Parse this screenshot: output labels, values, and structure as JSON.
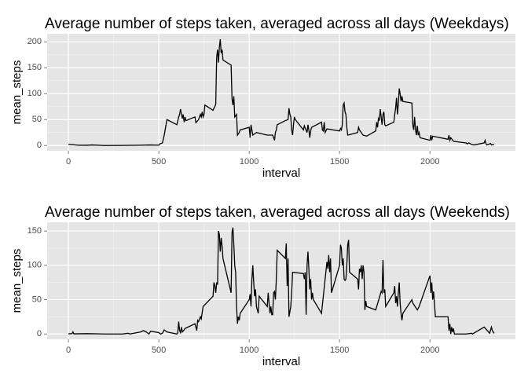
{
  "chart_data": [
    {
      "type": "line",
      "title": "Average number of steps taken, averaged across all days (Weekdays)",
      "x_label": "interval",
      "y_label": "mean_steps",
      "color": "#000000",
      "xlim": [
        -117.75,
        2472.75
      ],
      "ylim": [
        -10.27,
        215.6
      ],
      "xticks": [
        0,
        500,
        1000,
        1500,
        2000
      ],
      "yticks": [
        0,
        50,
        100,
        150,
        200
      ],
      "grid": true,
      "x": [
        0,
        55,
        100,
        130,
        200,
        300,
        400,
        450,
        500,
        505,
        520,
        530,
        545,
        600,
        610,
        615,
        620,
        630,
        635,
        640,
        645,
        650,
        700,
        705,
        720,
        730,
        735,
        740,
        745,
        750,
        755,
        800,
        805,
        810,
        815,
        820,
        825,
        830,
        835,
        840,
        845,
        850,
        855,
        900,
        905,
        910,
        915,
        920,
        930,
        935,
        945,
        950,
        1000,
        1005,
        1010,
        1015,
        1020,
        1040,
        1100,
        1130,
        1140,
        1145,
        1150,
        1155,
        1200,
        1215,
        1220,
        1225,
        1230,
        1235,
        1240,
        1245,
        1250,
        1255,
        1300,
        1305,
        1320,
        1325,
        1330,
        1335,
        1340,
        1345,
        1400,
        1405,
        1410,
        1415,
        1420,
        1430,
        1500,
        1505,
        1510,
        1515,
        1520,
        1525,
        1530,
        1535,
        1540,
        1545,
        1600,
        1605,
        1610,
        1630,
        1650,
        1700,
        1705,
        1710,
        1715,
        1720,
        1725,
        1730,
        1735,
        1740,
        1745,
        1750,
        1755,
        1800,
        1805,
        1810,
        1815,
        1820,
        1825,
        1830,
        1835,
        1840,
        1845,
        1850,
        1900,
        1905,
        1910,
        1915,
        1920,
        1925,
        1930,
        1935,
        1940,
        1945,
        2000,
        2005,
        2010,
        2015,
        2100,
        2105,
        2110,
        2115,
        2130,
        2200,
        2205,
        2215,
        2230,
        2245,
        2300,
        2305,
        2310,
        2315,
        2330,
        2335,
        2340,
        2355
      ],
      "values": [
        2.3,
        0.5,
        0.4,
        1,
        0,
        0.2,
        0.5,
        1,
        0.5,
        3,
        5,
        20,
        50,
        40,
        55,
        60,
        70,
        52,
        60,
        45,
        55,
        48,
        55,
        44,
        50,
        60,
        55,
        65,
        55,
        60,
        78,
        68,
        72,
        75,
        80,
        170,
        185,
        160,
        190,
        205,
        178,
        185,
        165,
        155,
        90,
        78,
        95,
        55,
        60,
        20,
        25,
        30,
        35,
        15,
        40,
        30,
        20,
        25,
        20,
        20,
        10,
        25,
        30,
        40,
        48,
        50,
        72,
        60,
        55,
        30,
        20,
        40,
        55,
        50,
        30,
        38,
        25,
        40,
        30,
        15,
        28,
        35,
        45,
        30,
        28,
        45,
        25,
        32,
        28,
        33,
        30,
        40,
        78,
        82,
        65,
        60,
        35,
        20,
        25,
        35,
        30,
        20,
        18,
        28,
        45,
        35,
        52,
        48,
        70,
        55,
        40,
        60,
        65,
        40,
        38,
        45,
        60,
        72,
        92,
        60,
        80,
        110,
        100,
        85,
        95,
        85,
        82,
        40,
        30,
        55,
        30,
        20,
        38,
        20,
        25,
        15,
        10,
        20,
        10,
        18,
        12,
        20,
        10,
        15,
        8,
        5,
        3,
        5,
        2,
        1,
        5,
        10,
        3,
        1,
        3,
        4,
        1,
        2
      ]
    },
    {
      "type": "line",
      "title": "Average number of steps taken, averaged across all days (Weekends)",
      "x_label": "interval",
      "y_label": "mean_steps",
      "color": "#000000",
      "xlim": [
        -117.75,
        2472.75
      ],
      "ylim": [
        -7.75,
        162.75
      ],
      "xticks": [
        0,
        500,
        1000,
        1500,
        2000
      ],
      "yticks": [
        0,
        50,
        100,
        150
      ],
      "grid": true,
      "x": [
        0,
        20,
        25,
        30,
        100,
        200,
        300,
        330,
        340,
        400,
        415,
        430,
        445,
        455,
        500,
        510,
        520,
        530,
        545,
        600,
        605,
        610,
        615,
        620,
        625,
        630,
        640,
        645,
        700,
        705,
        710,
        715,
        720,
        730,
        735,
        745,
        800,
        805,
        810,
        815,
        820,
        825,
        830,
        835,
        840,
        845,
        850,
        855,
        900,
        905,
        910,
        915,
        920,
        925,
        930,
        935,
        940,
        945,
        950,
        1000,
        1005,
        1010,
        1015,
        1020,
        1025,
        1030,
        1035,
        1040,
        1045,
        1050,
        1055,
        1100,
        1105,
        1110,
        1115,
        1120,
        1125,
        1130,
        1135,
        1140,
        1145,
        1150,
        1155,
        1200,
        1205,
        1210,
        1215,
        1220,
        1230,
        1235,
        1240,
        1300,
        1305,
        1310,
        1315,
        1320,
        1325,
        1330,
        1335,
        1340,
        1345,
        1350,
        1355,
        1400,
        1430,
        1435,
        1440,
        1445,
        1450,
        1455,
        1500,
        1505,
        1510,
        1515,
        1520,
        1525,
        1530,
        1535,
        1540,
        1545,
        1550,
        1555,
        1600,
        1605,
        1610,
        1615,
        1620,
        1625,
        1630,
        1635,
        1640,
        1645,
        1650,
        1700,
        1730,
        1735,
        1740,
        1745,
        1750,
        1755,
        1800,
        1805,
        1810,
        1815,
        1820,
        1825,
        1830,
        1835,
        1840,
        1845,
        1850,
        1900,
        1905,
        1930,
        1940,
        2000,
        2005,
        2010,
        2015,
        2020,
        2030,
        2100,
        2105,
        2110,
        2115,
        2120,
        2125,
        2130,
        2135,
        2200,
        2230,
        2235,
        2300,
        2330,
        2340,
        2345,
        2355
      ],
      "values": [
        0.2,
        0.5,
        3,
        0.2,
        0.5,
        0,
        0,
        1,
        0,
        3,
        5,
        3,
        0,
        4,
        2,
        0,
        1,
        6,
        3,
        0,
        2,
        18,
        5,
        2,
        10,
        3,
        6,
        8,
        15,
        10,
        5,
        20,
        18,
        25,
        22,
        40,
        55,
        75,
        70,
        60,
        75,
        72,
        150,
        145,
        120,
        140,
        128,
        110,
        60,
        148,
        155,
        130,
        100,
        90,
        40,
        15,
        25,
        20,
        30,
        50,
        58,
        40,
        80,
        100,
        75,
        55,
        65,
        40,
        35,
        30,
        55,
        40,
        60,
        45,
        30,
        40,
        28,
        28,
        60,
        62,
        50,
        80,
        122,
        110,
        132,
        70,
        110,
        25,
        40,
        60,
        90,
        88,
        80,
        90,
        28,
        100,
        120,
        95,
        65,
        80,
        50,
        60,
        50,
        30,
        105,
        95,
        115,
        90,
        110,
        60,
        100,
        130,
        125,
        100,
        110,
        80,
        78,
        80,
        100,
        130,
        137,
        90,
        80,
        65,
        95,
        90,
        100,
        80,
        100,
        90,
        35,
        48,
        40,
        35,
        62,
        60,
        108,
        60,
        65,
        40,
        60,
        70,
        45,
        55,
        40,
        60,
        75,
        45,
        30,
        20,
        30,
        50,
        45,
        35,
        40,
        85,
        60,
        75,
        50,
        62,
        25,
        25,
        5,
        15,
        0,
        10,
        3,
        8,
        0,
        0,
        1,
        0,
        10,
        1,
        10,
        5,
        1
      ]
    }
  ]
}
